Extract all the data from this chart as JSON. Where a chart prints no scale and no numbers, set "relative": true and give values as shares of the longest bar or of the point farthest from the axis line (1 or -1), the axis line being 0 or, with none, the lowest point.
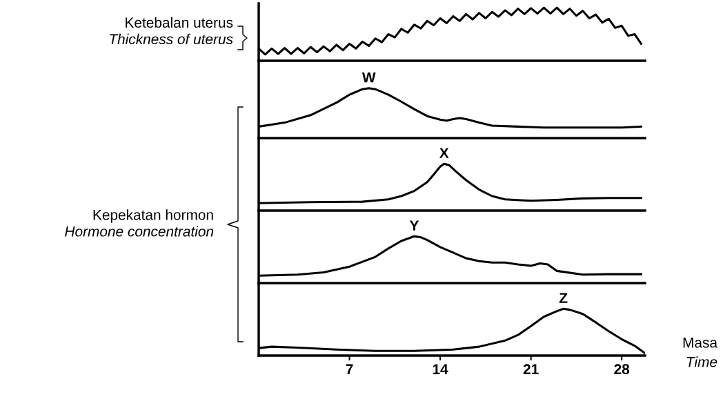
{
  "chart_data": [
    {
      "type": "line",
      "relative": true,
      "ylabel": "Ketebalan uterus\nThickness of uterus",
      "xlim": [
        0,
        29.8
      ],
      "tick_labels": false,
      "grid": false,
      "legend": false,
      "marker": "none",
      "line_style": "solid",
      "series": [
        {
          "color": "#000000",
          "x": [
            0,
            0.5,
            1,
            1.5,
            2,
            2.5,
            3,
            3.5,
            4,
            4.5,
            5,
            5.5,
            6,
            6.5,
            7,
            7.5,
            8,
            8.5,
            9,
            9.5,
            10,
            10.5,
            11,
            11.5,
            12,
            12.5,
            13,
            13.5,
            14,
            14.5,
            15,
            15.5,
            16,
            16.5,
            17,
            17.5,
            18,
            18.5,
            19,
            19.5,
            20,
            20.5,
            21,
            21.5,
            22,
            22.5,
            23,
            23.5,
            24,
            24.5,
            25,
            25.5,
            26,
            26.5,
            27,
            27.5,
            28,
            28.5,
            29,
            29.5
          ],
          "values": [
            0.23,
            0.12,
            0.23,
            0.13,
            0.24,
            0.13,
            0.24,
            0.14,
            0.26,
            0.16,
            0.27,
            0.18,
            0.3,
            0.2,
            0.32,
            0.23,
            0.36,
            0.28,
            0.42,
            0.35,
            0.5,
            0.44,
            0.6,
            0.53,
            0.68,
            0.61,
            0.75,
            0.67,
            0.8,
            0.71,
            0.84,
            0.75,
            0.88,
            0.78,
            0.9,
            0.8,
            0.92,
            0.83,
            0.95,
            0.86,
            0.98,
            0.88,
            0.99,
            0.89,
            1.0,
            0.89,
            1.0,
            0.88,
            0.98,
            0.85,
            0.94,
            0.8,
            0.87,
            0.72,
            0.79,
            0.62,
            0.66,
            0.47,
            0.5,
            0.32
          ]
        }
      ]
    },
    {
      "type": "line",
      "relative": true,
      "ylabel": "Kepekatan hormon\nHormone concentration",
      "xlim": [
        0,
        29.8
      ],
      "tick_labels": false,
      "grid": false,
      "legend": false,
      "marker": "none",
      "line_style": "solid",
      "annotations": [
        {
          "text": "W",
          "x": 8.5,
          "y": 1.0
        }
      ],
      "series": [
        {
          "color": "#000000",
          "x": [
            0,
            2,
            4,
            6,
            7,
            8,
            8.5,
            9,
            10,
            11,
            12,
            13,
            14,
            14.5,
            15,
            15.5,
            16,
            17,
            18,
            20,
            22,
            25,
            28,
            29.5
          ],
          "values": [
            0.23,
            0.31,
            0.46,
            0.71,
            0.87,
            0.98,
            1.0,
            0.98,
            0.87,
            0.73,
            0.58,
            0.44,
            0.37,
            0.35,
            0.38,
            0.4,
            0.38,
            0.31,
            0.25,
            0.23,
            0.21,
            0.21,
            0.21,
            0.23
          ]
        }
      ]
    },
    {
      "type": "line",
      "relative": true,
      "xlim": [
        0,
        29.8
      ],
      "tick_labels": false,
      "grid": false,
      "legend": false,
      "marker": "none",
      "line_style": "solid",
      "annotations": [
        {
          "text": "X",
          "x": 14.3,
          "y": 1.0
        }
      ],
      "series": [
        {
          "color": "#000000",
          "x": [
            0,
            4,
            8,
            10,
            11,
            12,
            13,
            13.5,
            14,
            14.3,
            14.7,
            15.2,
            16,
            17,
            18,
            19,
            21,
            23,
            25,
            27,
            29.5
          ],
          "values": [
            0.16,
            0.18,
            0.19,
            0.24,
            0.31,
            0.42,
            0.61,
            0.77,
            0.94,
            1.0,
            0.97,
            0.84,
            0.65,
            0.45,
            0.31,
            0.24,
            0.21,
            0.23,
            0.26,
            0.27,
            0.27
          ]
        }
      ]
    },
    {
      "type": "line",
      "relative": true,
      "xlim": [
        0,
        29.8
      ],
      "tick_labels": false,
      "grid": false,
      "legend": false,
      "marker": "none",
      "line_style": "solid",
      "annotations": [
        {
          "text": "Y",
          "x": 12,
          "y": 1.0
        }
      ],
      "series": [
        {
          "color": "#000000",
          "x": [
            0,
            3,
            5,
            7,
            9,
            10,
            11,
            12,
            12.5,
            13,
            14,
            15,
            16,
            17,
            18,
            19,
            20,
            21,
            21.7,
            22.3,
            23,
            25,
            27,
            29.5
          ],
          "values": [
            0.16,
            0.18,
            0.23,
            0.35,
            0.56,
            0.74,
            0.9,
            1.0,
            0.98,
            0.92,
            0.77,
            0.65,
            0.53,
            0.47,
            0.44,
            0.44,
            0.4,
            0.37,
            0.42,
            0.4,
            0.26,
            0.18,
            0.19,
            0.19
          ]
        }
      ]
    },
    {
      "type": "line",
      "relative": true,
      "xlabel": "Masa\nTime",
      "xlim": [
        0,
        29.8
      ],
      "xticks": [
        7,
        14,
        21,
        28
      ],
      "tick_labels": "x",
      "grid": false,
      "legend": false,
      "marker": "none",
      "line_style": "solid",
      "annotations": [
        {
          "text": "Z",
          "x": 23.5,
          "y": 1.0
        }
      ],
      "series": [
        {
          "color": "#000000",
          "x": [
            0,
            1,
            3,
            6,
            9,
            12,
            15,
            17,
            19,
            20,
            21,
            22,
            23,
            23.5,
            24,
            25,
            26,
            27,
            28,
            29,
            29.8
          ],
          "values": [
            0.16,
            0.19,
            0.17,
            0.13,
            0.1,
            0.1,
            0.13,
            0.19,
            0.32,
            0.44,
            0.63,
            0.83,
            0.95,
            1.0,
            0.98,
            0.89,
            0.71,
            0.52,
            0.35,
            0.21,
            0.05
          ]
        }
      ]
    }
  ]
}
